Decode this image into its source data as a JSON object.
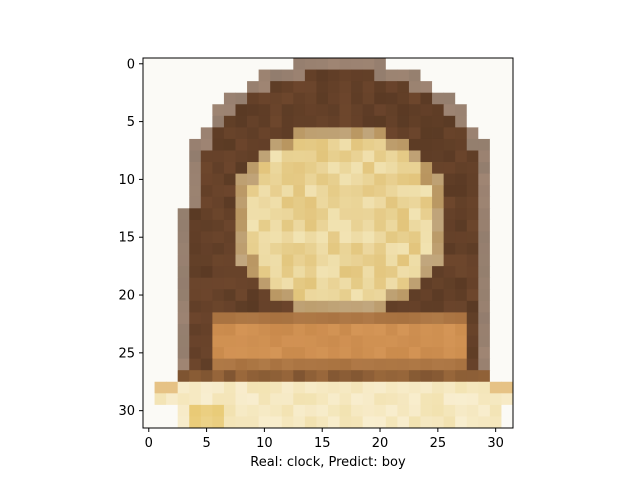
{
  "figure": {
    "xlabel": "Real: clock, Predict: boy",
    "x_ticks": [
      "0",
      "5",
      "10",
      "15",
      "20",
      "25",
      "30"
    ],
    "y_ticks": [
      "0",
      "5",
      "10",
      "15",
      "20",
      "25",
      "30"
    ],
    "image_description_size": "32x32 pixelated image",
    "colors": {
      "frame_dark": "#5a3a24",
      "frame_mid": "#7a4e32",
      "dial_cream": "#f3e6b8",
      "dial_gold": "#d9b25a",
      "plaque": "#c98a4c",
      "base_light": "#f2e2b0",
      "background": "#fbfaf6"
    }
  }
}
